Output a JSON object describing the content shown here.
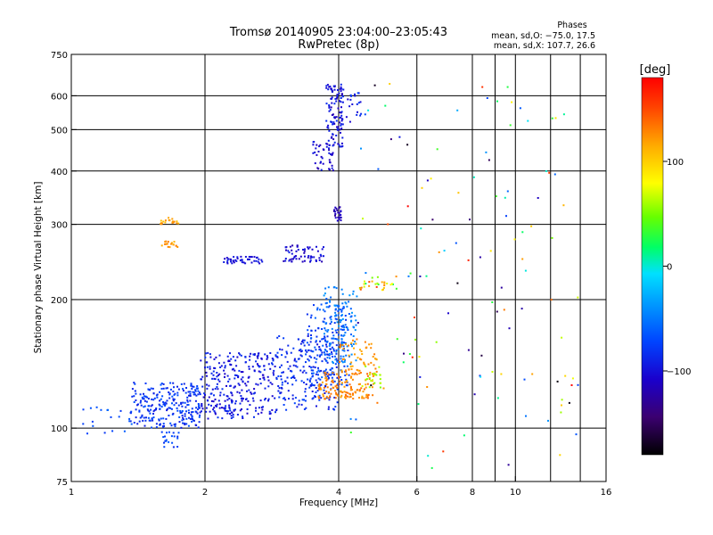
{
  "chart_data": {
    "type": "scatter",
    "title": "Tromsø 20140905 23:04:00–23:05:43",
    "subtitle": "RwPretec (8p)",
    "xlabel": "Frequency [MHz]",
    "ylabel": "Stationary phase Virtual Height [km]",
    "x_scale": "log",
    "y_scale": "log",
    "xlim": [
      1,
      16
    ],
    "ylim": [
      75,
      750
    ],
    "x_ticks": [
      1,
      2,
      4,
      6,
      8,
      10,
      16
    ],
    "x_tick_labels": [
      "1",
      "2",
      "4",
      "6",
      "8",
      "10",
      "16"
    ],
    "y_ticks": [
      75,
      100,
      200,
      300,
      400,
      500,
      600,
      750
    ],
    "y_tick_labels": [
      "75",
      "100",
      "200",
      "300",
      "400",
      "500",
      "600",
      "750"
    ],
    "grid": true,
    "phase_note": {
      "heading": "Phases",
      "line_o": "mean, sd,O: −75.0, 17.5",
      "line_x": "mean, sd,X: 107.7, 26.6"
    },
    "colorbar": {
      "label": "[deg]",
      "range": [
        -180,
        180
      ],
      "ticks": [
        100,
        0,
        -100
      ],
      "tick_labels": [
        "100",
        "0",
        "−100"
      ]
    },
    "clusters": [
      {
        "f": [
          1.35,
          1.95
        ],
        "h": [
          100,
          128
        ],
        "phase": [
          -95,
          -65
        ],
        "n": 260
      },
      {
        "f": [
          1.95,
          2.9
        ],
        "h": [
          105,
          150
        ],
        "phase": [
          -110,
          -80
        ],
        "n": 300
      },
      {
        "f": [
          2.9,
          4.0
        ],
        "h": [
          110,
          165
        ],
        "phase": [
          -100,
          -70
        ],
        "n": 220
      },
      {
        "f": [
          3.4,
          4.2
        ],
        "h": [
          125,
          195
        ],
        "phase": [
          -85,
          -55
        ],
        "n": 160
      },
      {
        "f": [
          3.7,
          4.4
        ],
        "h": [
          140,
          215
        ],
        "phase": [
          -65,
          -35
        ],
        "n": 110
      },
      {
        "f": [
          3.6,
          4.8
        ],
        "h": [
          117,
          135
        ],
        "phase": [
          115,
          140
        ],
        "n": 130
      },
      {
        "f": [
          4.0,
          4.9
        ],
        "h": [
          132,
          162
        ],
        "phase": [
          110,
          135
        ],
        "n": 60
      },
      {
        "f": [
          4.5,
          5.0
        ],
        "h": [
          124,
          140
        ],
        "phase": [
          50,
          75
        ],
        "n": 20
      },
      {
        "f": [
          4.4,
          5.4
        ],
        "h": [
          210,
          228
        ],
        "phase": [
          20,
          160
        ],
        "n": 30
      },
      {
        "f": [
          3.75,
          4.1
        ],
        "h": [
          450,
          640
        ],
        "phase": [
          -120,
          -80
        ],
        "n": 110
      },
      {
        "f": [
          3.5,
          3.9
        ],
        "h": [
          400,
          470
        ],
        "phase": [
          -120,
          -90
        ],
        "n": 40
      },
      {
        "f": [
          4.15,
          4.6
        ],
        "h": [
          520,
          610
        ],
        "phase": [
          -110,
          -70
        ],
        "n": 20
      },
      {
        "f": [
          3.9,
          4.05
        ],
        "h": [
          305,
          330
        ],
        "phase": [
          -130,
          -105
        ],
        "n": 25
      },
      {
        "f": [
          3.0,
          3.7
        ],
        "h": [
          245,
          270
        ],
        "phase": [
          -120,
          -90
        ],
        "n": 60
      },
      {
        "f": [
          2.2,
          2.7
        ],
        "h": [
          243,
          252
        ],
        "phase": [
          -110,
          -90
        ],
        "n": 45
      },
      {
        "f": [
          1.58,
          1.75
        ],
        "h": [
          300,
          312
        ],
        "phase": [
          105,
          130
        ],
        "n": 22
      },
      {
        "f": [
          1.58,
          1.75
        ],
        "h": [
          265,
          275
        ],
        "phase": [
          110,
          135
        ],
        "n": 18
      },
      {
        "f": [
          1.6,
          1.75
        ],
        "h": [
          88,
          98
        ],
        "phase": [
          -90,
          -60
        ],
        "n": 20
      },
      {
        "f": [
          1.05,
          1.4
        ],
        "h": [
          95,
          112
        ],
        "phase": [
          -80,
          -55
        ],
        "n": 18
      },
      {
        "f": [
          4.2,
          14
        ],
        "h": [
          80,
          640
        ],
        "phase": [
          -180,
          180
        ],
        "n": 120
      }
    ]
  }
}
